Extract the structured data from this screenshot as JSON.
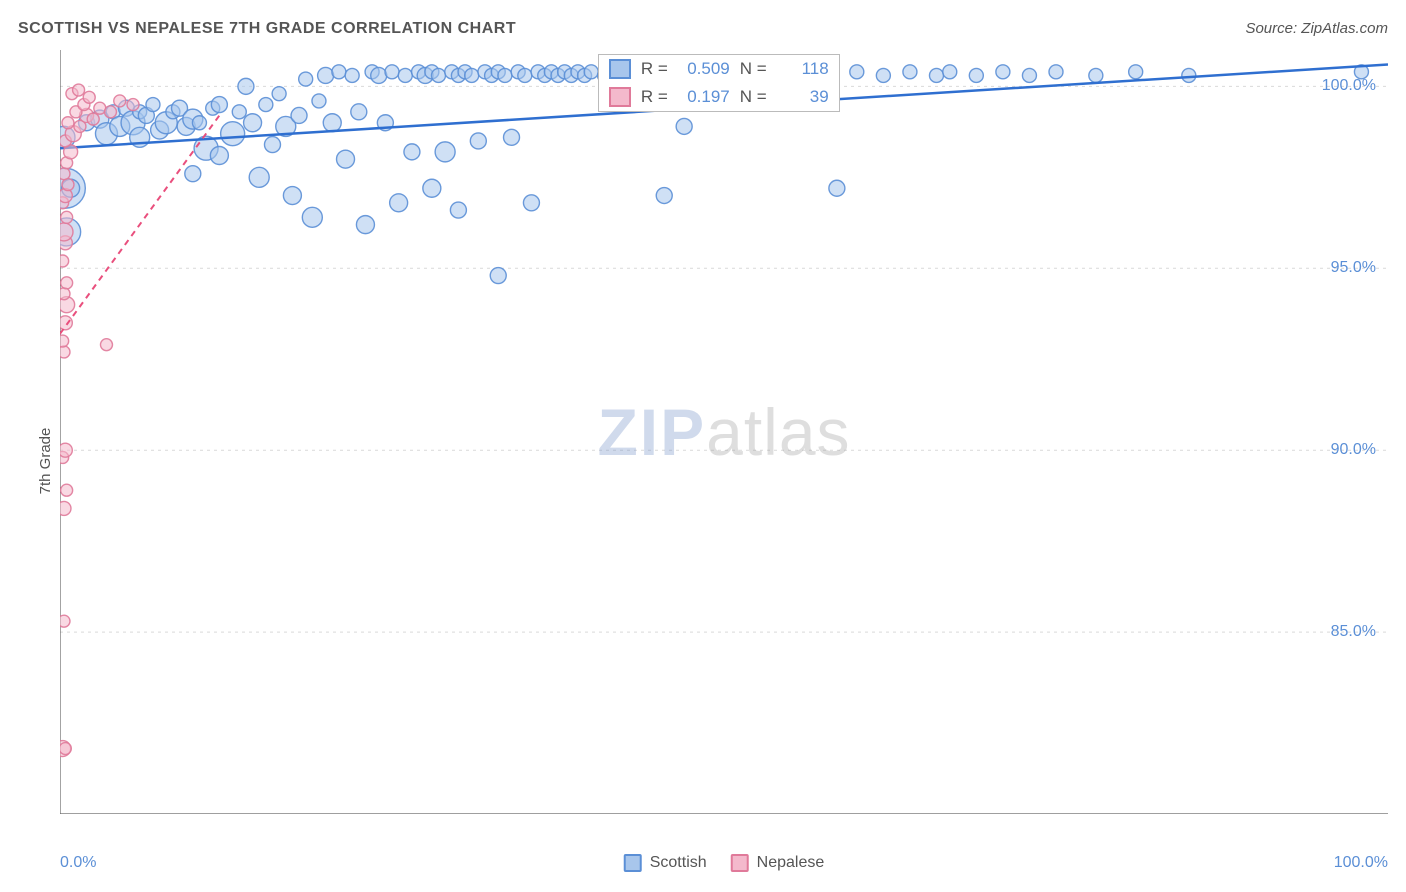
{
  "title": "SCOTTISH VS NEPALESE 7TH GRADE CORRELATION CHART",
  "source": "Source: ZipAtlas.com",
  "watermark": {
    "a": "ZIP",
    "b": "atlas"
  },
  "ylabel": "7th Grade",
  "chart": {
    "type": "scatter",
    "background_color": "#ffffff",
    "grid_color": "#d9d9d9",
    "axis_color": "#666666",
    "tick_color": "#666666",
    "tick_font_color": "#5b8fd6",
    "xlim": [
      0,
      100
    ],
    "ylim": [
      80,
      101
    ],
    "xticks_major": [
      0,
      10,
      20,
      30,
      40,
      50,
      60,
      70,
      80,
      90,
      100
    ],
    "xtick_labels": {
      "0": "0.0%",
      "100": "100.0%"
    },
    "yticks": [
      85,
      90,
      95,
      100
    ],
    "ytick_labels": {
      "85": "85.0%",
      "90": "90.0%",
      "95": "95.0%",
      "100": "100.0%"
    },
    "series": [
      {
        "name": "Scottish",
        "marker_stroke": "#5b8fd6",
        "marker_fill": "#a8c6ec",
        "marker_opacity": 0.55,
        "line_color": "#2f6fd0",
        "line_dash": "0",
        "line_width": 2.5,
        "regression": {
          "x1": 0,
          "y1": 98.3,
          "x2": 100,
          "y2": 100.6
        },
        "stats": {
          "R": "0.509",
          "N": "118"
        },
        "points": [
          {
            "x": 0.3,
            "y": 98.6,
            "r": 11
          },
          {
            "x": 0.4,
            "y": 97.2,
            "r": 20
          },
          {
            "x": 0.8,
            "y": 97.2,
            "r": 9
          },
          {
            "x": 0.5,
            "y": 96.0,
            "r": 14
          },
          {
            "x": 2.0,
            "y": 99.0,
            "r": 8
          },
          {
            "x": 3.0,
            "y": 99.1,
            "r": 9
          },
          {
            "x": 3.5,
            "y": 98.7,
            "r": 11
          },
          {
            "x": 4.0,
            "y": 99.3,
            "r": 7
          },
          {
            "x": 4.5,
            "y": 98.9,
            "r": 10
          },
          {
            "x": 5.0,
            "y": 99.4,
            "r": 8
          },
          {
            "x": 5.5,
            "y": 99.0,
            "r": 12
          },
          {
            "x": 6.0,
            "y": 99.3,
            "r": 7
          },
          {
            "x": 6.0,
            "y": 98.6,
            "r": 10
          },
          {
            "x": 6.5,
            "y": 99.2,
            "r": 8
          },
          {
            "x": 7.0,
            "y": 99.5,
            "r": 7
          },
          {
            "x": 7.5,
            "y": 98.8,
            "r": 9
          },
          {
            "x": 8.0,
            "y": 99.0,
            "r": 11
          },
          {
            "x": 8.5,
            "y": 99.3,
            "r": 7
          },
          {
            "x": 9.0,
            "y": 99.4,
            "r": 8
          },
          {
            "x": 9.5,
            "y": 98.9,
            "r": 9
          },
          {
            "x": 10.0,
            "y": 99.1,
            "r": 10
          },
          {
            "x": 10.0,
            "y": 97.6,
            "r": 8
          },
          {
            "x": 10.5,
            "y": 99.0,
            "r": 7
          },
          {
            "x": 11.0,
            "y": 98.3,
            "r": 12
          },
          {
            "x": 11.5,
            "y": 99.4,
            "r": 7
          },
          {
            "x": 12.0,
            "y": 98.1,
            "r": 9
          },
          {
            "x": 12.0,
            "y": 99.5,
            "r": 8
          },
          {
            "x": 13.0,
            "y": 98.7,
            "r": 12
          },
          {
            "x": 13.5,
            "y": 99.3,
            "r": 7
          },
          {
            "x": 14.0,
            "y": 100.0,
            "r": 8
          },
          {
            "x": 14.5,
            "y": 99.0,
            "r": 9
          },
          {
            "x": 15.0,
            "y": 97.5,
            "r": 10
          },
          {
            "x": 15.5,
            "y": 99.5,
            "r": 7
          },
          {
            "x": 16.0,
            "y": 98.4,
            "r": 8
          },
          {
            "x": 16.5,
            "y": 99.8,
            "r": 7
          },
          {
            "x": 17.0,
            "y": 98.9,
            "r": 10
          },
          {
            "x": 17.5,
            "y": 97.0,
            "r": 9
          },
          {
            "x": 18.0,
            "y": 99.2,
            "r": 8
          },
          {
            "x": 18.5,
            "y": 100.2,
            "r": 7
          },
          {
            "x": 19.0,
            "y": 96.4,
            "r": 10
          },
          {
            "x": 19.5,
            "y": 99.6,
            "r": 7
          },
          {
            "x": 20.0,
            "y": 100.3,
            "r": 8
          },
          {
            "x": 20.5,
            "y": 99.0,
            "r": 9
          },
          {
            "x": 21.0,
            "y": 100.4,
            "r": 7
          },
          {
            "x": 21.5,
            "y": 98.0,
            "r": 9
          },
          {
            "x": 22.0,
            "y": 100.3,
            "r": 7
          },
          {
            "x": 22.5,
            "y": 99.3,
            "r": 8
          },
          {
            "x": 23.0,
            "y": 96.2,
            "r": 9
          },
          {
            "x": 23.5,
            "y": 100.4,
            "r": 7
          },
          {
            "x": 24.0,
            "y": 100.3,
            "r": 8
          },
          {
            "x": 24.5,
            "y": 99.0,
            "r": 8
          },
          {
            "x": 25.0,
            "y": 100.4,
            "r": 7
          },
          {
            "x": 25.5,
            "y": 96.8,
            "r": 9
          },
          {
            "x": 26.0,
            "y": 100.3,
            "r": 7
          },
          {
            "x": 26.5,
            "y": 98.2,
            "r": 8
          },
          {
            "x": 27.0,
            "y": 100.4,
            "r": 7
          },
          {
            "x": 27.5,
            "y": 100.3,
            "r": 8
          },
          {
            "x": 28.0,
            "y": 97.2,
            "r": 9
          },
          {
            "x": 28.0,
            "y": 100.4,
            "r": 7
          },
          {
            "x": 28.5,
            "y": 100.3,
            "r": 7
          },
          {
            "x": 29.0,
            "y": 98.2,
            "r": 10
          },
          {
            "x": 29.5,
            "y": 100.4,
            "r": 7
          },
          {
            "x": 30.0,
            "y": 100.3,
            "r": 7
          },
          {
            "x": 30.0,
            "y": 96.6,
            "r": 8
          },
          {
            "x": 30.5,
            "y": 100.4,
            "r": 7
          },
          {
            "x": 31.0,
            "y": 100.3,
            "r": 7
          },
          {
            "x": 31.5,
            "y": 98.5,
            "r": 8
          },
          {
            "x": 32.0,
            "y": 100.4,
            "r": 7
          },
          {
            "x": 32.5,
            "y": 100.3,
            "r": 7
          },
          {
            "x": 33.0,
            "y": 94.8,
            "r": 8
          },
          {
            "x": 33.0,
            "y": 100.4,
            "r": 7
          },
          {
            "x": 33.5,
            "y": 100.3,
            "r": 7
          },
          {
            "x": 34.0,
            "y": 98.6,
            "r": 8
          },
          {
            "x": 34.5,
            "y": 100.4,
            "r": 7
          },
          {
            "x": 35.0,
            "y": 100.3,
            "r": 7
          },
          {
            "x": 35.5,
            "y": 96.8,
            "r": 8
          },
          {
            "x": 36.0,
            "y": 100.4,
            "r": 7
          },
          {
            "x": 36.5,
            "y": 100.3,
            "r": 7
          },
          {
            "x": 37.0,
            "y": 100.4,
            "r": 7
          },
          {
            "x": 37.5,
            "y": 100.3,
            "r": 7
          },
          {
            "x": 38.0,
            "y": 100.4,
            "r": 7
          },
          {
            "x": 38.5,
            "y": 100.3,
            "r": 7
          },
          {
            "x": 39.0,
            "y": 100.4,
            "r": 7
          },
          {
            "x": 39.5,
            "y": 100.3,
            "r": 7
          },
          {
            "x": 40.0,
            "y": 100.4,
            "r": 7
          },
          {
            "x": 41.0,
            "y": 100.3,
            "r": 7
          },
          {
            "x": 42.0,
            "y": 100.4,
            "r": 7
          },
          {
            "x": 43.0,
            "y": 100.3,
            "r": 7
          },
          {
            "x": 44.0,
            "y": 100.4,
            "r": 7
          },
          {
            "x": 45.0,
            "y": 100.3,
            "r": 7
          },
          {
            "x": 45.5,
            "y": 97.0,
            "r": 8
          },
          {
            "x": 46.0,
            "y": 100.4,
            "r": 7
          },
          {
            "x": 47.0,
            "y": 98.9,
            "r": 8
          },
          {
            "x": 48.0,
            "y": 100.3,
            "r": 7
          },
          {
            "x": 49.0,
            "y": 100.4,
            "r": 7
          },
          {
            "x": 50.0,
            "y": 100.3,
            "r": 7
          },
          {
            "x": 51.0,
            "y": 100.4,
            "r": 7
          },
          {
            "x": 52.0,
            "y": 100.3,
            "r": 7
          },
          {
            "x": 53.0,
            "y": 100.4,
            "r": 7
          },
          {
            "x": 54.0,
            "y": 100.3,
            "r": 7
          },
          {
            "x": 55.0,
            "y": 100.4,
            "r": 7
          },
          {
            "x": 56.0,
            "y": 100.3,
            "r": 7
          },
          {
            "x": 57.0,
            "y": 100.4,
            "r": 7
          },
          {
            "x": 58.0,
            "y": 100.3,
            "r": 7
          },
          {
            "x": 58.5,
            "y": 97.2,
            "r": 8
          },
          {
            "x": 60.0,
            "y": 100.4,
            "r": 7
          },
          {
            "x": 62.0,
            "y": 100.3,
            "r": 7
          },
          {
            "x": 64.0,
            "y": 100.4,
            "r": 7
          },
          {
            "x": 66.0,
            "y": 100.3,
            "r": 7
          },
          {
            "x": 67.0,
            "y": 100.4,
            "r": 7
          },
          {
            "x": 69.0,
            "y": 100.3,
            "r": 7
          },
          {
            "x": 71.0,
            "y": 100.4,
            "r": 7
          },
          {
            "x": 73.0,
            "y": 100.3,
            "r": 7
          },
          {
            "x": 75.0,
            "y": 100.4,
            "r": 7
          },
          {
            "x": 78.0,
            "y": 100.3,
            "r": 7
          },
          {
            "x": 81.0,
            "y": 100.4,
            "r": 7
          },
          {
            "x": 85.0,
            "y": 100.3,
            "r": 7
          },
          {
            "x": 98.0,
            "y": 100.4,
            "r": 7
          }
        ]
      },
      {
        "name": "Nepalese",
        "marker_stroke": "#e07a9a",
        "marker_fill": "#f4b9cc",
        "marker_opacity": 0.55,
        "line_color": "#e94f7d",
        "line_dash": "6 5",
        "line_width": 2,
        "regression": {
          "x1": 0,
          "y1": 93.2,
          "x2": 12,
          "y2": 99.2
        },
        "stats": {
          "R": "0.197",
          "N": "39"
        },
        "points": [
          {
            "x": 0.2,
            "y": 81.8,
            "r": 8
          },
          {
            "x": 0.4,
            "y": 81.8,
            "r": 6
          },
          {
            "x": 0.3,
            "y": 85.3,
            "r": 6
          },
          {
            "x": 0.3,
            "y": 88.4,
            "r": 7
          },
          {
            "x": 0.5,
            "y": 88.9,
            "r": 6
          },
          {
            "x": 0.2,
            "y": 89.8,
            "r": 6
          },
          {
            "x": 0.4,
            "y": 90.0,
            "r": 7
          },
          {
            "x": 0.3,
            "y": 92.7,
            "r": 6
          },
          {
            "x": 3.5,
            "y": 92.9,
            "r": 6
          },
          {
            "x": 0.2,
            "y": 93.0,
            "r": 6
          },
          {
            "x": 0.4,
            "y": 93.5,
            "r": 7
          },
          {
            "x": 0.5,
            "y": 94.0,
            "r": 8
          },
          {
            "x": 0.3,
            "y": 94.3,
            "r": 6
          },
          {
            "x": 0.5,
            "y": 94.6,
            "r": 6
          },
          {
            "x": 0.2,
            "y": 95.2,
            "r": 6
          },
          {
            "x": 0.4,
            "y": 95.7,
            "r": 7
          },
          {
            "x": 0.3,
            "y": 96.0,
            "r": 9
          },
          {
            "x": 0.5,
            "y": 96.4,
            "r": 6
          },
          {
            "x": 0.2,
            "y": 96.8,
            "r": 6
          },
          {
            "x": 0.4,
            "y": 97.0,
            "r": 7
          },
          {
            "x": 0.6,
            "y": 97.3,
            "r": 6
          },
          {
            "x": 0.3,
            "y": 97.6,
            "r": 6
          },
          {
            "x": 0.5,
            "y": 97.9,
            "r": 6
          },
          {
            "x": 0.8,
            "y": 98.2,
            "r": 7
          },
          {
            "x": 0.4,
            "y": 98.5,
            "r": 6
          },
          {
            "x": 1.0,
            "y": 98.7,
            "r": 8
          },
          {
            "x": 1.5,
            "y": 98.9,
            "r": 6
          },
          {
            "x": 0.6,
            "y": 99.0,
            "r": 6
          },
          {
            "x": 2.0,
            "y": 99.2,
            "r": 7
          },
          {
            "x": 2.5,
            "y": 99.1,
            "r": 6
          },
          {
            "x": 1.2,
            "y": 99.3,
            "r": 6
          },
          {
            "x": 3.0,
            "y": 99.4,
            "r": 6
          },
          {
            "x": 3.8,
            "y": 99.3,
            "r": 6
          },
          {
            "x": 1.8,
            "y": 99.5,
            "r": 6
          },
          {
            "x": 4.5,
            "y": 99.6,
            "r": 6
          },
          {
            "x": 2.2,
            "y": 99.7,
            "r": 6
          },
          {
            "x": 5.5,
            "y": 99.5,
            "r": 6
          },
          {
            "x": 0.9,
            "y": 99.8,
            "r": 6
          },
          {
            "x": 1.4,
            "y": 99.9,
            "r": 6
          }
        ]
      }
    ],
    "stats_box": {
      "left_pct": 40.5,
      "top_pct": 0.5
    },
    "bottom_legend": [
      {
        "label": "Scottish",
        "fill": "#a8c6ec",
        "stroke": "#5b8fd6"
      },
      {
        "label": "Nepalese",
        "fill": "#f4b9cc",
        "stroke": "#e07a9a"
      }
    ]
  }
}
